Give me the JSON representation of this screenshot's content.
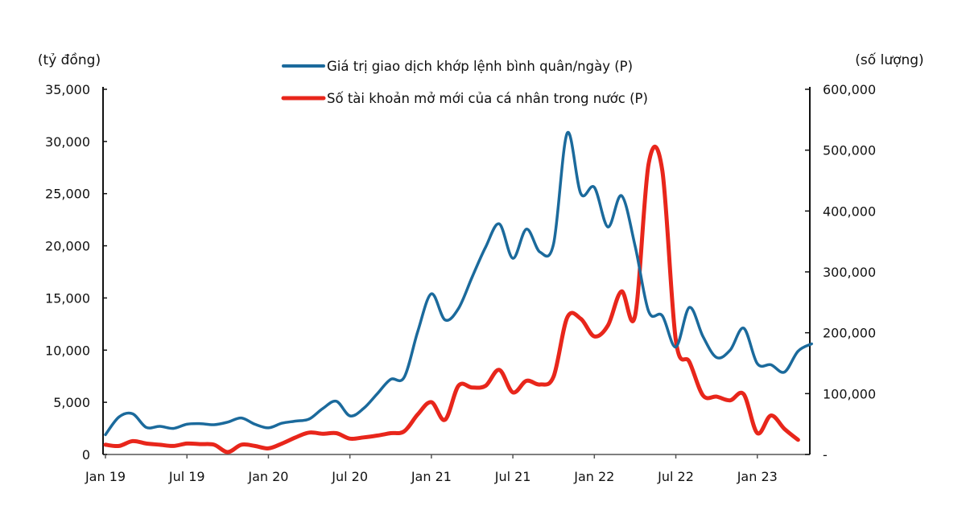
{
  "chart_data": {
    "type": "line",
    "title": "",
    "left_axis": {
      "label": "(tỷ đồng)",
      "range": [
        0,
        35000
      ],
      "ticks": [
        "0",
        "5,000",
        "10,000",
        "15,000",
        "20,000",
        "25,000",
        "30,000",
        "35,000"
      ],
      "tick_values": [
        0,
        5000,
        10000,
        15000,
        20000,
        25000,
        30000,
        35000
      ]
    },
    "right_axis": {
      "label": "(số lượng)",
      "range": [
        0,
        600000
      ],
      "ticks": [
        "-",
        "100,000",
        "200,000",
        "300,000",
        "400,000",
        "500,000",
        "600,000"
      ],
      "tick_values": [
        0,
        100000,
        200000,
        300000,
        400000,
        500000,
        600000
      ]
    },
    "x_ticks": [
      "Jan 19",
      "Jul 19",
      "Jan 20",
      "Jul 20",
      "Jan 21",
      "Jul 21",
      "Jan 22",
      "Jul 22",
      "Jan 23"
    ],
    "x_start": "Jan 19",
    "x_interval": "monthly",
    "grid": false,
    "legend_position": "top-center",
    "series": [
      {
        "name": "Giá trị giao dịch khớp lệnh bình quân/ngày (P)",
        "axis": "left",
        "color": "#1b6a9c",
        "values": [
          1900,
          3600,
          3900,
          2600,
          2700,
          2500,
          2900,
          2950,
          2850,
          3100,
          3500,
          2900,
          2550,
          3000,
          3200,
          3400,
          4400,
          5100,
          3700,
          4400,
          5800,
          7200,
          7400,
          11800,
          15400,
          12900,
          14000,
          17000,
          19900,
          22100,
          18800,
          21600,
          19400,
          20200,
          30800,
          25000,
          25600,
          21800,
          24800,
          20000,
          13700,
          13300,
          10300,
          14100,
          11300,
          9300,
          10000,
          12100,
          8700,
          8600,
          7900,
          9900,
          10600
        ]
      },
      {
        "name": "Số tài khoản mở mới của cá nhân trong nước (P)",
        "axis": "right",
        "color": "#e8261b",
        "values": [
          16000,
          14000,
          22000,
          18000,
          16000,
          14000,
          18000,
          17000,
          16000,
          4000,
          16000,
          14000,
          10000,
          18000,
          28000,
          36000,
          34000,
          35000,
          26000,
          28000,
          31000,
          35000,
          38000,
          66000,
          86000,
          57000,
          113000,
          110000,
          113000,
          139000,
          102000,
          121000,
          115000,
          128000,
          225000,
          223000,
          194000,
          212000,
          268000,
          228000,
          478000,
          467000,
          188000,
          152000,
          97000,
          95000,
          89000,
          99000,
          35000,
          64000,
          42000,
          24000
        ]
      }
    ]
  }
}
